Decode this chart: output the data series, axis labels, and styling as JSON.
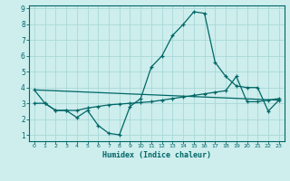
{
  "xlabel": "Humidex (Indice chaleur)",
  "bg_color": "#cdeeed",
  "grid_color": "#a8d8d8",
  "line_color": "#006666",
  "xlim": [
    -0.5,
    23.5
  ],
  "ylim": [
    0.6,
    9.2
  ],
  "xticks": [
    0,
    1,
    2,
    3,
    4,
    5,
    6,
    7,
    8,
    9,
    10,
    11,
    12,
    13,
    14,
    15,
    16,
    17,
    18,
    19,
    20,
    21,
    22,
    23
  ],
  "yticks": [
    1,
    2,
    3,
    4,
    5,
    6,
    7,
    8,
    9
  ],
  "curve1_x": [
    0,
    1,
    2,
    3,
    4,
    5,
    6,
    7,
    8,
    9,
    10,
    11,
    12,
    13,
    14,
    15,
    16,
    17,
    18,
    19,
    20,
    21,
    22,
    23
  ],
  "curve1_y": [
    3.85,
    3.0,
    2.55,
    2.55,
    2.1,
    2.55,
    1.6,
    1.1,
    1.0,
    2.8,
    3.3,
    5.3,
    6.0,
    7.3,
    8.0,
    8.8,
    8.7,
    5.6,
    4.7,
    4.1,
    4.0,
    4.0,
    2.5,
    3.2
  ],
  "curve2_x": [
    0,
    1,
    2,
    3,
    4,
    5,
    6,
    7,
    8,
    9,
    10,
    11,
    12,
    13,
    14,
    15,
    16,
    17,
    18,
    19,
    20,
    21,
    22,
    23
  ],
  "curve2_y": [
    3.0,
    3.0,
    2.55,
    2.55,
    2.55,
    2.7,
    2.8,
    2.9,
    2.95,
    3.0,
    3.05,
    3.1,
    3.2,
    3.3,
    3.4,
    3.5,
    3.6,
    3.7,
    3.8,
    4.7,
    3.1,
    3.1,
    3.2,
    3.3
  ],
  "curve3_x": [
    0,
    23
  ],
  "curve3_y": [
    3.85,
    3.2
  ]
}
